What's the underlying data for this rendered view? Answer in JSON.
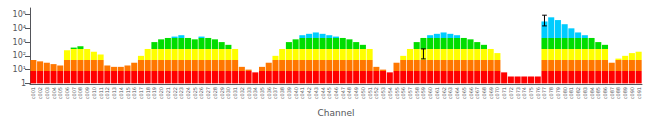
{
  "chart_data": {
    "type": "bar",
    "xlabel": "Channel",
    "log": "y",
    "grid": false,
    "categories": [
      "c001",
      "c002",
      "c003",
      "c004",
      "c005",
      "c006",
      "c007",
      "c008",
      "c009",
      "c010",
      "c011",
      "c012",
      "c013",
      "c014",
      "c015",
      "c016",
      "c017",
      "c018",
      "c019",
      "c020",
      "c021",
      "c022",
      "c023",
      "c024",
      "c025",
      "c026",
      "c027",
      "c028",
      "c029",
      "c030",
      "c031",
      "c032",
      "c033",
      "c034",
      "c035",
      "c036",
      "c037",
      "c038",
      "c039",
      "c040",
      "c041",
      "c042",
      "c043",
      "c044",
      "c045",
      "c046",
      "c047",
      "c048",
      "c049",
      "c050",
      "c051",
      "c052",
      "c053",
      "c054",
      "c055",
      "c056",
      "c057",
      "c058",
      "c059",
      "c060",
      "c061",
      "c062",
      "c063",
      "c064",
      "c065",
      "c066",
      "c067",
      "c068",
      "c069",
      "c070",
      "c071",
      "c072",
      "c073",
      "c074",
      "c075",
      "c076",
      "c077",
      "c078",
      "c079",
      "c080",
      "c081",
      "c082",
      "c083",
      "c084",
      "c085",
      "c086",
      "c087",
      "c088",
      "c089",
      "c090",
      "c091"
    ],
    "values": [
      50.1187,
      39.8107,
      31.6228,
      25.1189,
      19.9526,
      251.189,
      398.107,
      501.187,
      316.228,
      199.526,
      125.893,
      19.9526,
      15.8489,
      15.8489,
      19.9526,
      31.6228,
      100,
      316.228,
      1000,
      1584.89,
      1995.26,
      2511.89,
      3162.28,
      1995.26,
      1584.89,
      2511.89,
      1995.26,
      1584.89,
      1000,
      630.957,
      316.228,
      15.8489,
      10,
      6.30957,
      15.8489,
      31.6228,
      100,
      316.228,
      1000,
      1584.89,
      3162.28,
      3981.07,
      5011.87,
      3981.07,
      3162.28,
      2511.89,
      1995.26,
      1584.89,
      1000,
      630.957,
      316.228,
      15.8489,
      10,
      6.30957,
      31.6228,
      100,
      316.228,
      1000,
      1995.26,
      3162.28,
      3981.07,
      5011.87,
      3981.07,
      3162.28,
      1995.26,
      1584.89,
      1000,
      630.957,
      316.228,
      158.489,
      6.30957,
      3.16228,
      3.16228,
      3.16228,
      3.16228,
      3.16228,
      31622.8,
      63095.7,
      39810.7,
      19952.6,
      10000,
      5011.87,
      3162.28,
      1995.26,
      1000,
      630.957,
      31.6228,
      63.0957,
      100,
      158.489,
      199.526
    ],
    "bands": [
      {
        "color": "#ff0000",
        "from": 1
      },
      {
        "color": "#ff7700",
        "from": 7.94328
      },
      {
        "color": "#ffff00",
        "from": 50.1187
      },
      {
        "color": "#00dd00",
        "from": 316.228
      },
      {
        "color": "#00ccff",
        "from": 1995.26
      }
    ],
    "error_bars": [
      {
        "category": "c059",
        "value": 120,
        "minus": 60,
        "plus": 200
      },
      {
        "category": "c077",
        "value": 40000,
        "minus": 25000,
        "plus": 50000
      }
    ],
    "ylim": [
      0.9,
      300000
    ],
    "yticks": [
      1,
      {
        "value": 10,
        "label": "10¹"
      },
      {
        "value": 100,
        "label": "10²"
      },
      {
        "value": 1000,
        "label": "10³"
      },
      {
        "value": 10000,
        "label": "10⁴"
      },
      {
        "value": 100000,
        "label": "10⁵"
      }
    ]
  }
}
